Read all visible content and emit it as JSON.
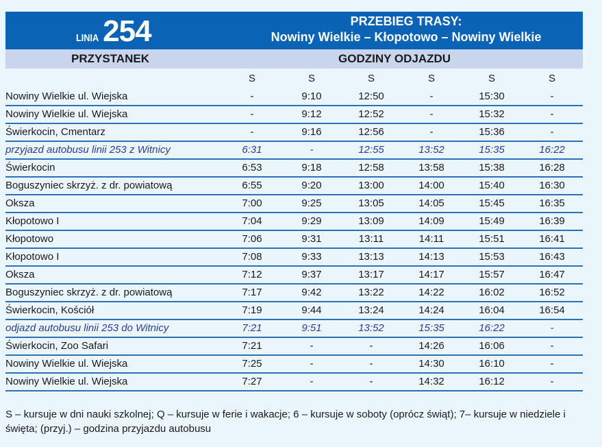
{
  "header": {
    "linia_label": "LINIA",
    "line_number": "254",
    "route_title": "PRZEBIEG TRASY:",
    "route": "Nowiny Wielkie – Kłopotowo – Nowiny Wielkie"
  },
  "columns": {
    "stop": "PRZYSTANEK",
    "times": "GODZINY ODJAZDU"
  },
  "markers": [
    "S",
    "S",
    "S",
    "S",
    "S",
    "S"
  ],
  "rows": [
    {
      "stop": "Nowiny Wielkie ul. Wiejska",
      "times": [
        "-",
        "9:10",
        "12:50",
        "-",
        "15:30",
        "-"
      ]
    },
    {
      "stop": "Nowiny Wielkie ul. Wiejska",
      "times": [
        "-",
        "9:12",
        "12:52",
        "-",
        "15:32",
        "-"
      ]
    },
    {
      "stop": "Świerkocin, Cmentarz",
      "times": [
        "-",
        "9:16",
        "12:56",
        "-",
        "15:36",
        "-"
      ]
    },
    {
      "stop": "przyjazd autobusu linii 253 z Witnicy",
      "italic": true,
      "times": [
        "6:31",
        "-",
        "12:55",
        "13:52",
        "15:35",
        "16:22"
      ]
    },
    {
      "stop": "Świerkocin",
      "times": [
        "6:53",
        "9:18",
        "12:58",
        "13:58",
        "15:38",
        "16:28"
      ]
    },
    {
      "stop": "Boguszyniec skrzyż. z dr. powiatową",
      "times": [
        "6:55",
        "9:20",
        "13:00",
        "14:00",
        "15:40",
        "16:30"
      ]
    },
    {
      "stop": "Oksza",
      "times": [
        "7:00",
        "9:25",
        "13:05",
        "14:05",
        "15:45",
        "16:35"
      ]
    },
    {
      "stop": "Kłopotowo I",
      "times": [
        "7:04",
        "9:29",
        "13:09",
        "14:09",
        "15:49",
        "16:39"
      ]
    },
    {
      "stop": "Kłopotowo",
      "times": [
        "7:06",
        "9:31",
        "13:11",
        "14:11",
        "15:51",
        "16:41"
      ]
    },
    {
      "stop": "Kłopotowo I",
      "times": [
        "7:08",
        "9:33",
        "13:13",
        "14:13",
        "15:53",
        "16:43"
      ]
    },
    {
      "stop": "Oksza",
      "times": [
        "7:12",
        "9:37",
        "13:17",
        "14:17",
        "15:57",
        "16:47"
      ]
    },
    {
      "stop": "Boguszyniec skrzyż. z dr. powiatową",
      "times": [
        "7:17",
        "9:42",
        "13:22",
        "14:22",
        "16:02",
        "16:52"
      ]
    },
    {
      "stop": "Świerkocin, Kościół",
      "times": [
        "7:19",
        "9:44",
        "13:24",
        "14:24",
        "16:04",
        "16:54"
      ]
    },
    {
      "stop": "odjazd autobusu linii 253 do Witnicy",
      "italic": true,
      "times": [
        "7:21",
        "9:51",
        "13:52",
        "15:35",
        "16:22",
        "-"
      ]
    },
    {
      "stop": "Świerkocin, Zoo Safari",
      "times": [
        "7:21",
        "-",
        "-",
        "14:26",
        "16:06",
        "-"
      ]
    },
    {
      "stop": "Nowiny Wielkie ul. Wiejska",
      "times": [
        "7:25",
        "-",
        "-",
        "14:30",
        "16:10",
        "-"
      ]
    },
    {
      "stop": "Nowiny Wielkie ul. Wiejska",
      "times": [
        "7:27",
        "-",
        "-",
        "14:32",
        "16:12",
        "-"
      ]
    }
  ],
  "footnote": "S – kursuje w dni nauki szkolnej; Q – kursuje w ferie i wakacje; 6 – kursuje w soboty (oprócz świąt); 7– kursuje w niedziele i święta; (przyj.) – godzina przyjazdu autobusu"
}
